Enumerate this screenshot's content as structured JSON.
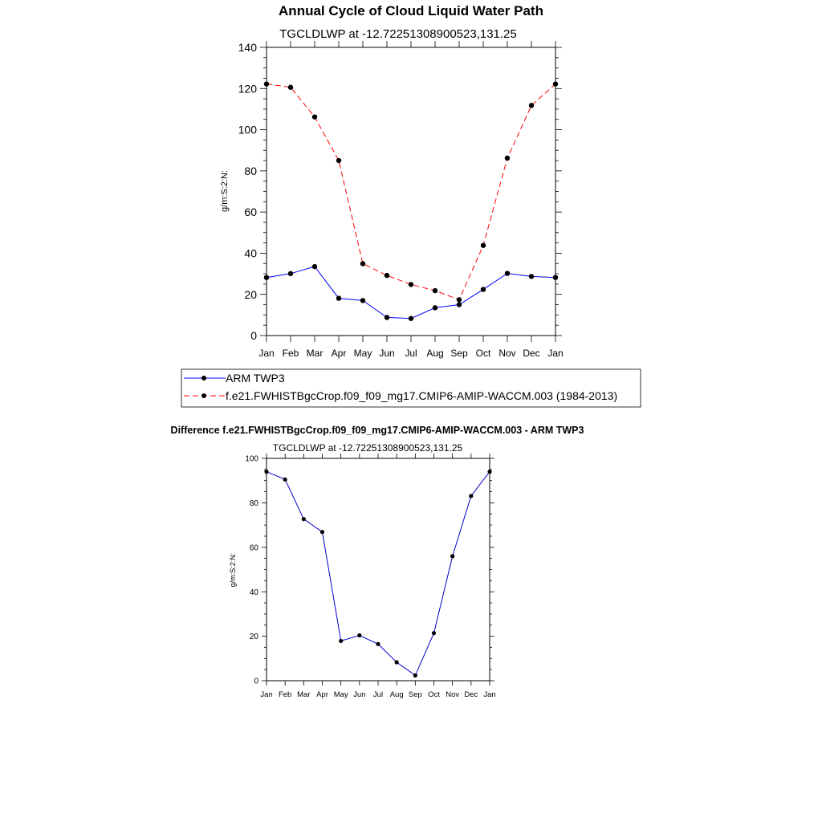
{
  "page": {
    "title": "Annual Cycle of Cloud Liquid Water Path",
    "diff_title": "Difference f.e21.FWHISTBgcCrop.f09_f09_mg17.CMIP6-AMIP-WACCM.003 - ARM TWP3"
  },
  "chart_data": [
    {
      "type": "line",
      "title": "Annual Cycle of Cloud Liquid Water Path",
      "subtitle": "TGCLDLWP at -12.72251308900523,131.25",
      "xlabel": "",
      "ylabel": "g/m:S:2:N:",
      "ylim": [
        0,
        140
      ],
      "yticks": [
        0,
        20,
        40,
        60,
        80,
        100,
        120,
        140
      ],
      "categories": [
        "Jan",
        "Feb",
        "Mar",
        "Apr",
        "May",
        "Jun",
        "Jul",
        "Aug",
        "Sep",
        "Oct",
        "Nov",
        "Dec",
        "Jan"
      ],
      "legend_position": "below",
      "series": [
        {
          "name": "ARM TWP3",
          "color": "#0000ff",
          "dash": "solid",
          "values": [
            28.2,
            30.1,
            33.5,
            18.1,
            17.0,
            8.8,
            8.3,
            13.5,
            15.0,
            22.4,
            30.2,
            28.7,
            28.2
          ]
        },
        {
          "name": "f.e21.FWHISTBgcCrop.f09_f09_mg17.CMIP6-AMIP-WACCM.003 (1984-2013)",
          "color": "#ff0000",
          "dash": "dashed",
          "values": [
            122.2,
            120.6,
            106.2,
            85.0,
            34.9,
            29.2,
            24.8,
            21.8,
            17.4,
            43.8,
            86.2,
            111.8,
            122.2
          ]
        }
      ]
    },
    {
      "type": "line",
      "title": "Difference f.e21.FWHISTBgcCrop.f09_f09_mg17.CMIP6-AMIP-WACCM.003 - ARM TWP3",
      "subtitle": "TGCLDLWP at -12.72251308900523,131.25",
      "xlabel": "",
      "ylabel": "g/m:S:2:N:",
      "ylim": [
        0,
        100
      ],
      "yticks": [
        0,
        20,
        40,
        60,
        80,
        100
      ],
      "categories": [
        "Jan",
        "Feb",
        "Mar",
        "Apr",
        "May",
        "Jun",
        "Jul",
        "Aug",
        "Sep",
        "Oct",
        "Nov",
        "Dec",
        "Jan"
      ],
      "series": [
        {
          "name": "Difference",
          "color": "#0000cc",
          "dash": "solid",
          "values": [
            94.0,
            90.5,
            72.7,
            66.9,
            17.9,
            20.4,
            16.5,
            8.3,
            2.4,
            21.4,
            56.0,
            83.1,
            94.0
          ]
        }
      ]
    }
  ]
}
